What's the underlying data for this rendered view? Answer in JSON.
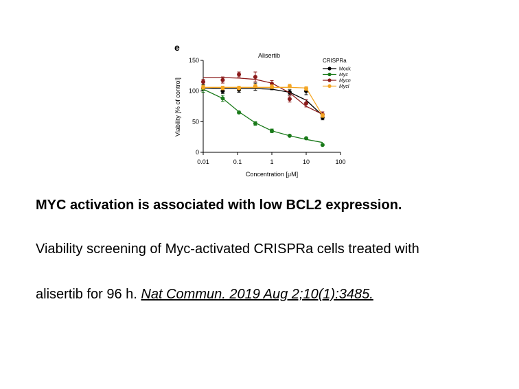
{
  "panel_label": "e",
  "caption": {
    "title": "MYC activation is associated with low BCL2 expression.",
    "line1": "Viability screening of Myc-activated CRISPRa cells treated with",
    "line2_prefix": "alisertib for 96 h. ",
    "citation": "Nat Commun. 2019 Aug 2;10(1):3485."
  },
  "chart_data": {
    "type": "scatter",
    "title": "Alisertib",
    "xlabel": "Concentration [μM]",
    "ylabel": "Viability [% of control]",
    "xscale": "log",
    "xlim": [
      0.01,
      100
    ],
    "ylim": [
      0,
      150
    ],
    "xticks": [
      0.01,
      0.1,
      1,
      10,
      100
    ],
    "xtick_labels": [
      "0.01",
      "0.1",
      "1",
      "10",
      "100"
    ],
    "yticks": [
      0,
      50,
      100,
      150
    ],
    "ytick_labels": [
      "0",
      "50",
      "100",
      "150"
    ],
    "grid": false,
    "legend": {
      "title": "CRISPRa",
      "position": "top-right"
    },
    "x": [
      0.01,
      0.037,
      0.11,
      0.33,
      1,
      3.3,
      10,
      30
    ],
    "series": [
      {
        "name": "Mock",
        "color": "#000000",
        "values": [
          105,
          100,
          102,
          107,
          106,
          98,
          100,
          57
        ],
        "errors": [
          4,
          4,
          4,
          6,
          4,
          4,
          6,
          4
        ],
        "fit": [
          105,
          104,
          104,
          104,
          103,
          98,
          85,
          60
        ]
      },
      {
        "name": "Myc",
        "color": "#1a7a1a",
        "values": [
          104,
          88,
          65,
          47,
          35,
          27,
          23,
          12
        ],
        "errors": [
          6,
          5,
          2,
          3,
          3,
          1,
          1,
          1
        ],
        "fit": [
          103,
          88,
          66,
          48,
          35,
          27,
          21,
          16
        ]
      },
      {
        "name": "Mycn",
        "color": "#8b1a1a",
        "values": [
          115,
          118,
          127,
          123,
          112,
          87,
          80,
          62
        ],
        "errors": [
          4,
          5,
          4,
          8,
          5,
          5,
          6,
          4
        ],
        "fit": [
          122,
          122,
          121,
          119,
          113,
          97,
          75,
          62
        ]
      },
      {
        "name": "Mycl",
        "color": "#f5a623",
        "values": [
          106,
          105,
          105,
          108,
          107,
          108,
          104,
          60
        ],
        "errors": [
          3,
          3,
          3,
          3,
          3,
          3,
          3,
          3
        ],
        "fit": [
          106,
          106,
          106,
          106,
          106,
          106,
          105,
          60
        ]
      }
    ]
  }
}
